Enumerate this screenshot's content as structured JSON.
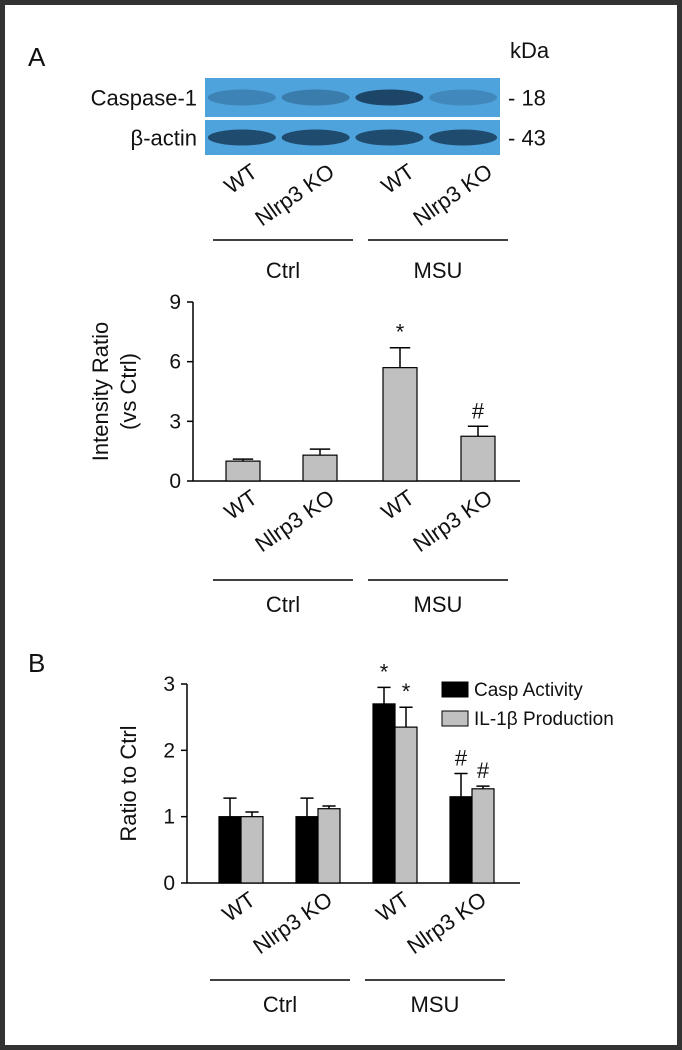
{
  "blot": {
    "panel": "A",
    "unit": "kDa",
    "rows": [
      {
        "label": "Caspase-1",
        "marker": "- 18"
      },
      {
        "label": "β-actin",
        "marker": "- 43"
      }
    ],
    "lanes": [
      "WT",
      "Nlrp3 KO",
      "WT",
      "Nlrp3 KO"
    ],
    "groups": [
      "Ctrl",
      "MSU"
    ]
  },
  "chart_data": [
    {
      "type": "bar",
      "ylabel": [
        "Intensity Ratio",
        "(vs Ctrl)"
      ],
      "categories": [
        "WT",
        "Nlrp3 KO",
        "WT",
        "Nlrp3 KO"
      ],
      "groups": [
        "Ctrl",
        "MSU"
      ],
      "values": [
        1.0,
        1.3,
        5.7,
        2.25
      ],
      "errors": [
        0.1,
        0.3,
        1.0,
        0.5
      ],
      "annotations": [
        null,
        null,
        "*",
        "#"
      ],
      "color": "#c0c0c0",
      "ylim": [
        0,
        9
      ],
      "yticks": [
        0,
        3,
        6,
        9
      ]
    },
    {
      "type": "bar",
      "panel": "B",
      "ylabel": [
        "Ratio to Ctrl"
      ],
      "categories": [
        "WT",
        "Nlrp3 KO",
        "WT",
        "Nlrp3 KO"
      ],
      "groups": [
        "Ctrl",
        "MSU"
      ],
      "series": [
        {
          "name": "Casp Activity",
          "color": "#000000",
          "values": [
            1.0,
            1.0,
            2.7,
            1.3
          ],
          "errors": [
            0.28,
            0.28,
            0.25,
            0.35
          ],
          "annotations": [
            null,
            null,
            "*",
            "#"
          ]
        },
        {
          "name": "IL-1β Production",
          "color": "#c0c0c0",
          "values": [
            1.0,
            1.12,
            2.35,
            1.42
          ],
          "errors": [
            0.07,
            0.04,
            0.3,
            0.04
          ],
          "annotations": [
            null,
            null,
            "*",
            "#"
          ]
        }
      ],
      "legend": "upper right",
      "ylim": [
        0,
        3
      ],
      "yticks": [
        0,
        1,
        2,
        3
      ]
    }
  ]
}
